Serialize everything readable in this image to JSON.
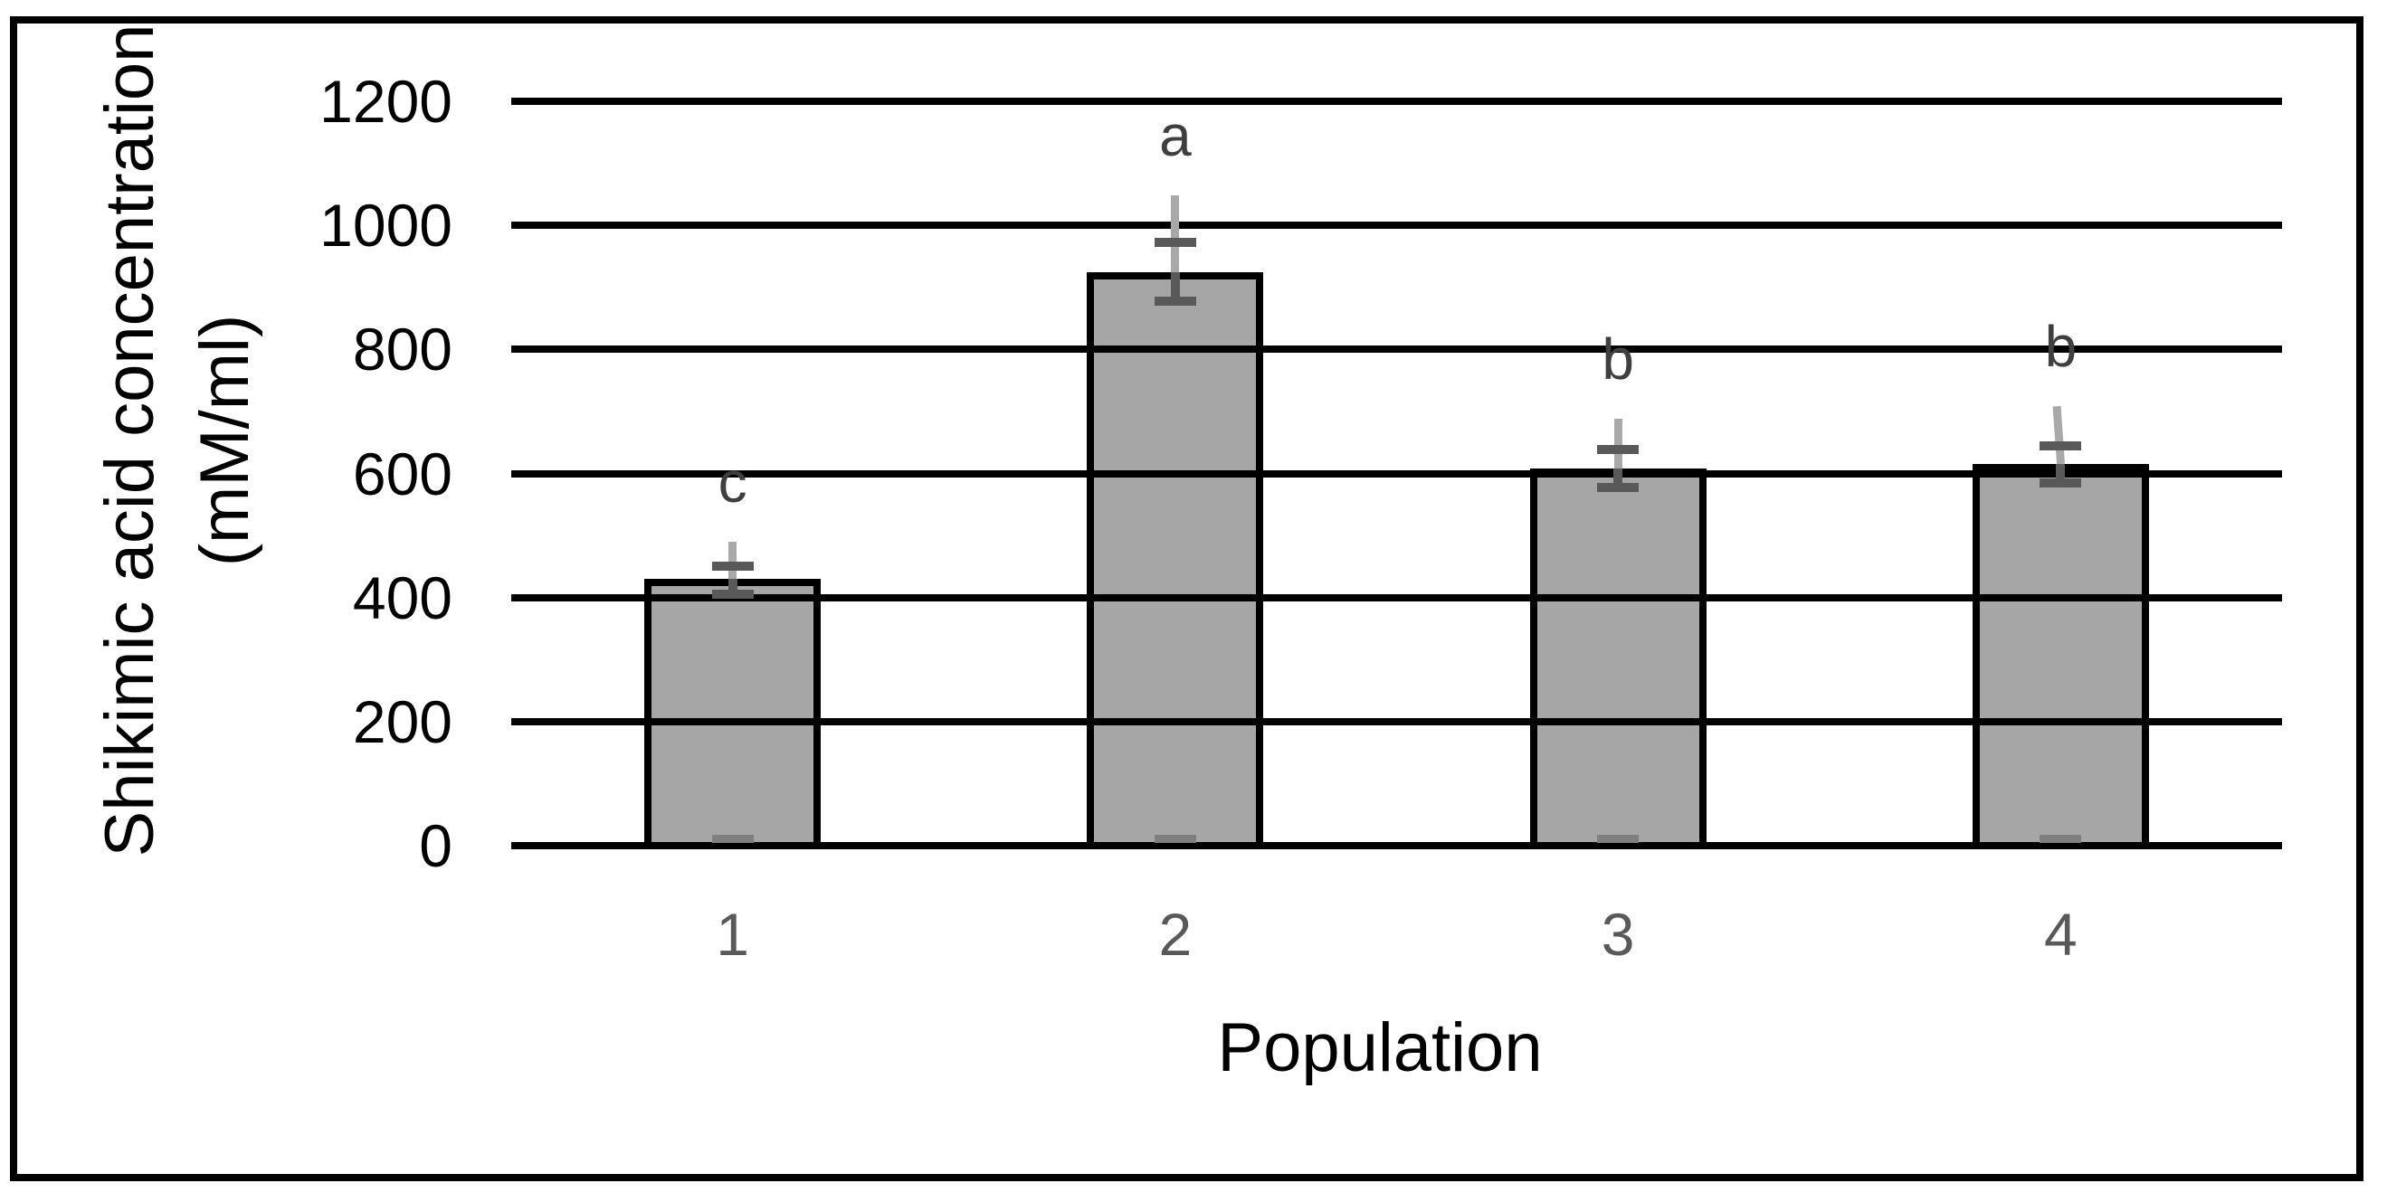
{
  "figure": {
    "background": "#ffffff",
    "frame_border_color": "#000000"
  },
  "chart_data": {
    "type": "bar",
    "title": "",
    "xlabel": "Population",
    "ylabel": "Shikimic acid concentration\n(mM/ml)",
    "categories": [
      "1",
      "2",
      "3",
      "4"
    ],
    "values": [
      430,
      925,
      608,
      615
    ],
    "series": [
      {
        "name": "Shikimic acid concentration",
        "values": [
          430,
          925,
          608,
          615
        ],
        "error_cap_upper": [
          450,
          972,
          638,
          645
        ],
        "error_cap_lower": [
          405,
          878,
          577,
          585
        ],
        "whisker_top": [
          490,
          1048,
          688,
          708
        ],
        "significance_letters": [
          "c",
          "a",
          "b",
          "b"
        ]
      }
    ],
    "yticks": [
      "0",
      "200",
      "400",
      "600",
      "800",
      "1000",
      "1200"
    ],
    "ylim": [
      0,
      1200
    ],
    "ytick_step": 200,
    "grid": "horizontal-only",
    "legend_position": "none",
    "colors": {
      "bar_fill": "#a6a6a6",
      "bar_border": "#000000",
      "gridline": "#000000",
      "whisker_light": "#a9a9a9",
      "error_dark": "#595959",
      "significance_letter": "#3f3f3f",
      "xtick_label": "#595959",
      "ytick_label": "#000000",
      "base_dash": "#7f7f7f"
    }
  }
}
